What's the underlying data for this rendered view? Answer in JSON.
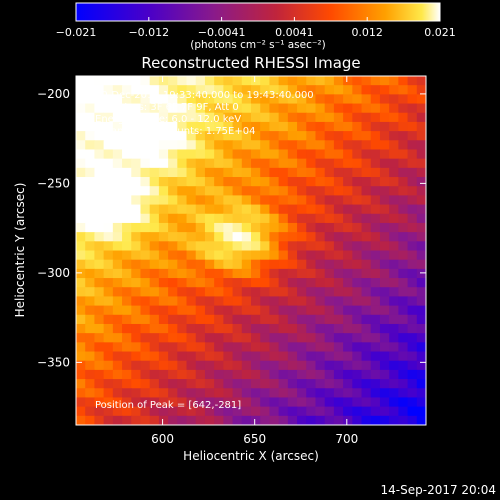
{
  "colorbar": {
    "ticks": [
      "−0.021",
      "−0.012",
      "−0.0041",
      "0.0041",
      "0.012",
      "0.021"
    ],
    "units_line": "(photons cm⁻² s⁻¹ asec⁻²)"
  },
  "header": {
    "title": "Reconstructed RHESSI Image",
    "info_lines": [
      "20-Dec-2014 19:33:40.000 to 19:43:40.000",
      "Detectors: 3F 6F 7F 9F, Att 0",
      "Energy Range: 6.0 - 12.0 keV",
      "Clean     Total counts: 1.75E+04"
    ],
    "peak_text": "Position of Peak = [642,-281]"
  },
  "footer": {
    "timestamp": "14-Sep-2017 20:04"
  },
  "colors": {
    "background": "#000000",
    "text": "#ffffff",
    "colormap": [
      "#0000ff",
      "#4a00c8",
      "#8a1a8a",
      "#c0243c",
      "#ff4a00",
      "#ffa000",
      "#ffe84a",
      "#ffffff"
    ]
  },
  "chart_data": {
    "type": "heatmap",
    "title": "Reconstructed RHESSI Image",
    "xlabel": "Heliocentric X (arcsec)",
    "ylabel": "Heliocentric Y (arcsec)",
    "xlim": [
      553,
      743
    ],
    "ylim": [
      -385,
      -190
    ],
    "xticks": [
      600,
      650,
      700
    ],
    "yticks": [
      -200,
      -250,
      -300,
      -350
    ],
    "colorbar_range": [
      -0.021,
      0.021
    ],
    "peak_position": [
      642,
      -281
    ],
    "sources": [
      {
        "x": 642,
        "y": -281,
        "level": 1.0
      },
      {
        "x": 572,
        "y": -262,
        "level": 0.85
      },
      {
        "x": 595,
        "y": -225,
        "level": 0.6
      }
    ]
  }
}
